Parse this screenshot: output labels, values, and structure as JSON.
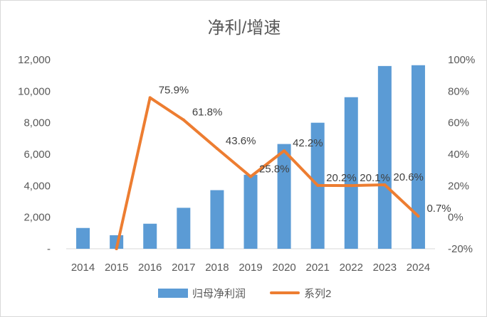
{
  "chart_data": {
    "type": "bar",
    "title": "净利/增速",
    "categories": [
      "2014",
      "2015",
      "2016",
      "2017",
      "2018",
      "2019",
      "2020",
      "2021",
      "2022",
      "2023",
      "2024"
    ],
    "series": [
      {
        "name": "归母净利润",
        "type": "bar",
        "axis": "left",
        "color": "#5b9bd5",
        "values": [
          1320,
          860,
          1590,
          2600,
          3720,
          4700,
          6650,
          8000,
          9620,
          11600,
          11650
        ]
      },
      {
        "name": "系列2",
        "type": "line",
        "axis": "right",
        "color": "#ed7d31",
        "values": [
          null,
          -20.0,
          75.9,
          61.8,
          43.6,
          25.8,
          42.2,
          20.2,
          20.1,
          20.6,
          0.7
        ],
        "labels": [
          "",
          "",
          "75.9%",
          "61.8%",
          "43.6%",
          "25.8%",
          "42.2%",
          "20.2%",
          "20.1%",
          "20.6%",
          "0.7%"
        ]
      }
    ],
    "y_left": {
      "min": 0,
      "max": 12000,
      "ticks": [
        0,
        2000,
        4000,
        6000,
        8000,
        10000,
        12000
      ],
      "tick_labels": [
        "-",
        "2,000",
        "4,000",
        "6,000",
        "8,000",
        "10,000",
        "12,000"
      ]
    },
    "y_right": {
      "min": -20,
      "max": 100,
      "ticks": [
        -20,
        0,
        20,
        40,
        60,
        80,
        100
      ],
      "tick_labels": [
        "-20%",
        "0%",
        "20%",
        "40%",
        "60%",
        "80%",
        "100%"
      ]
    },
    "grid": false,
    "legend_position": "bottom"
  }
}
